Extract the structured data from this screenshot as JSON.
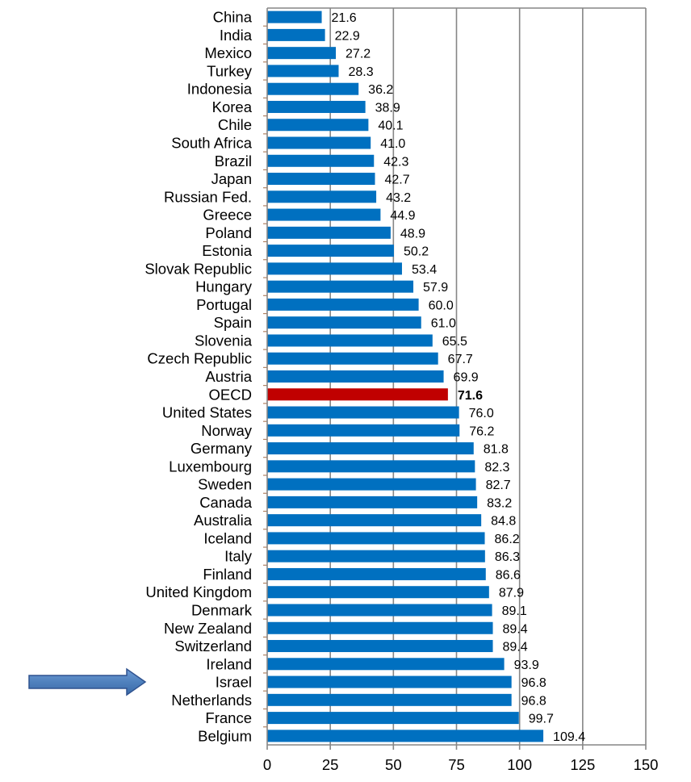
{
  "chart_data": {
    "type": "bar",
    "orientation": "horizontal",
    "title": "",
    "xlabel": "",
    "ylabel": "",
    "xlim": [
      0,
      150
    ],
    "x_ticks": [
      0,
      25,
      50,
      75,
      100,
      125,
      150
    ],
    "grid": true,
    "legend": "none",
    "categories": [
      "China",
      "India",
      "Mexico",
      "Turkey",
      "Indonesia",
      "Korea",
      "Chile",
      "South Africa",
      "Brazil",
      "Japan",
      "Russian Fed.",
      "Greece",
      "Poland",
      "Estonia",
      "Slovak Republic",
      "Hungary",
      "Portugal",
      "Spain",
      "Slovenia",
      "Czech Republic",
      "Austria",
      "OECD",
      "United States",
      "Norway",
      "Germany",
      "Luxembourg",
      "Sweden",
      "Canada",
      "Australia",
      "Iceland",
      "Italy",
      "Finland",
      "United Kingdom",
      "Denmark",
      "New Zealand",
      "Switzerland",
      "Ireland",
      "Israel",
      "Netherlands",
      "France",
      "Belgium"
    ],
    "values": [
      21.6,
      22.9,
      27.2,
      28.3,
      36.2,
      38.9,
      40.1,
      41.0,
      42.3,
      42.7,
      43.2,
      44.9,
      48.9,
      50.2,
      53.4,
      57.9,
      60.0,
      61.0,
      65.5,
      67.7,
      69.9,
      71.6,
      76.0,
      76.2,
      81.8,
      82.3,
      82.7,
      83.2,
      84.8,
      86.2,
      86.3,
      86.6,
      87.9,
      89.1,
      89.4,
      89.4,
      93.9,
      96.8,
      96.8,
      99.7,
      109.4
    ],
    "value_labels": [
      "21.6",
      "22.9",
      "27.2",
      "28.3",
      "36.2",
      "38.9",
      "40.1",
      "41.0",
      "42.3",
      "42.7",
      "43.2",
      "44.9",
      "48.9",
      "50.2",
      "53.4",
      "57.9",
      "60.0",
      "61.0",
      "65.5",
      "67.7",
      "69.9",
      "71.6",
      "76.0",
      "76.2",
      "81.8",
      "82.3",
      "82.7",
      "83.2",
      "84.8",
      "86.2",
      "86.3",
      "86.6",
      "87.9",
      "89.1",
      "89.4",
      "89.4",
      "93.9",
      "96.8",
      "96.8",
      "99.7",
      "109.4"
    ],
    "highlighted": {
      "category": "OECD",
      "color": "#C00000",
      "label_bold": true
    },
    "annotation": {
      "type": "arrow",
      "points_to": "Israel",
      "color": "#4F81BD"
    },
    "colors": {
      "bar": "#0070C0",
      "highlight": "#C00000",
      "grid": "#868686",
      "axis": "#868686",
      "tick": "#B08060"
    }
  }
}
